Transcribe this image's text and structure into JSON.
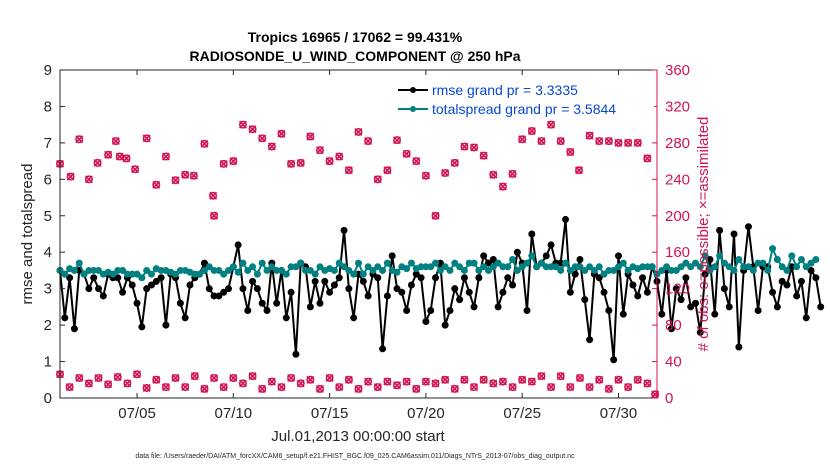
{
  "chart_data": {
    "type": "line",
    "title_line1": "Tropics 16965 / 17062 = 99.431%",
    "title_line2": "RADIOSONDE_U_WIND_COMPONENT @ 250 hPa",
    "xlabel": "Jul.01,2013 00:00:00 start",
    "ylabel_left": "rmse and totalspread",
    "ylabel_right": "# of obs: o=possible; ×=assimilated",
    "ylim_left": [
      0,
      9
    ],
    "ylim_right": [
      0,
      360
    ],
    "yticks_left": [
      "0",
      "1",
      "2",
      "3",
      "4",
      "5",
      "6",
      "7",
      "8",
      "9"
    ],
    "yticks_right": [
      "0",
      "40",
      "80",
      "120",
      "160",
      "200",
      "240",
      "280",
      "320",
      "360"
    ],
    "xlim_days": [
      1,
      32
    ],
    "xticks": [
      {
        "day": 5,
        "label": "07/05"
      },
      {
        "day": 10,
        "label": "07/10"
      },
      {
        "day": 15,
        "label": "07/15"
      },
      {
        "day": 20,
        "label": "07/20"
      },
      {
        "day": 25,
        "label": "07/25"
      },
      {
        "day": 30,
        "label": "07/30"
      }
    ],
    "footnote": "data file: /Users/raeder/DAI/ATM_forcXX/CAM6_setup/f.e21.FHIST_BGC.f09_025.CAM6assim.011/Diags_NTrS_2013-07/obs_diag_output.nc",
    "legend_position": "top-right",
    "series": [
      {
        "name": "rmse grand pr = 3.3335",
        "color": "#000000",
        "axis": "left",
        "t0": 1.0,
        "dt": 0.25,
        "values": [
          3.5,
          2.2,
          3.3,
          1.9,
          3.5,
          3.4,
          3.0,
          3.3,
          3.0,
          2.8,
          3.4,
          3.3,
          3.3,
          2.9,
          3.3,
          3.1,
          2.6,
          1.95,
          3.0,
          3.1,
          3.2,
          3.3,
          2.0,
          3.4,
          3.3,
          2.6,
          2.2,
          3.1,
          3.3,
          3.4,
          3.7,
          3.0,
          2.8,
          2.8,
          2.9,
          3.0,
          3.6,
          4.2,
          3.0,
          2.4,
          3.2,
          3.0,
          2.6,
          2.4,
          3.7,
          2.6,
          3.5,
          2.2,
          2.9,
          1.2,
          3.7,
          3.6,
          2.5,
          3.2,
          2.6,
          3.2,
          2.9,
          3.1,
          3.3,
          4.6,
          3.0,
          2.2,
          3.4,
          3.2,
          2.8,
          3.4,
          3.3,
          1.35,
          2.8,
          3.9,
          3.0,
          2.9,
          2.4,
          3.1,
          3.4,
          3.3,
          2.1,
          2.4,
          3.3,
          3.7,
          2.0,
          2.4,
          3.0,
          2.7,
          3.3,
          2.9,
          2.5,
          3.3,
          3.9,
          3.7,
          3.8,
          2.5,
          2.9,
          3.3,
          3.1,
          4.0,
          3.7,
          2.4,
          4.5,
          3.6,
          3.7,
          3.9,
          4.2,
          3.7,
          3.7,
          4.9,
          2.9,
          3.4,
          3.8,
          2.7,
          1.6,
          3.4,
          3.3,
          2.9,
          2.4,
          1.05,
          3.9,
          2.3,
          3.4,
          3.1,
          2.8,
          3.3,
          2.9,
          3.6,
          3.2,
          2.3,
          3.5,
          1.9,
          3.0,
          2.7,
          3.3,
          2.5,
          2.6,
          1.8,
          3.4,
          3.8,
          2.3,
          4.6,
          3.0,
          2.5,
          4.5,
          1.4,
          3.5,
          4.7,
          3.6,
          2.4,
          3.6,
          3.6,
          2.9,
          2.5,
          3.2,
          3.1,
          3.6,
          2.8,
          3.2,
          2.2,
          3.5,
          3.3,
          2.5
        ]
      },
      {
        "name": "totalspread grand pr = 3.5844",
        "color": "#008080",
        "axis": "left",
        "t0": 1.0,
        "dt": 0.25,
        "values": [
          3.5,
          3.4,
          3.55,
          3.5,
          3.7,
          3.4,
          3.5,
          3.5,
          3.5,
          3.4,
          3.45,
          3.4,
          3.5,
          3.5,
          3.4,
          3.4,
          3.4,
          3.3,
          3.5,
          3.4,
          3.55,
          3.5,
          3.5,
          3.45,
          3.4,
          3.5,
          3.5,
          3.45,
          3.4,
          3.4,
          3.5,
          3.6,
          3.5,
          3.5,
          3.4,
          3.5,
          3.6,
          3.45,
          3.7,
          3.5,
          3.6,
          3.4,
          3.7,
          3.5,
          3.6,
          3.5,
          3.5,
          3.4,
          3.6,
          3.6,
          3.7,
          3.5,
          3.5,
          3.4,
          3.6,
          3.5,
          3.55,
          3.5,
          3.7,
          3.6,
          3.5,
          3.4,
          3.7,
          3.4,
          3.6,
          3.5,
          3.6,
          3.5,
          3.7,
          3.5,
          3.45,
          3.6,
          3.55,
          3.7,
          3.55,
          3.6,
          3.6,
          3.6,
          3.7,
          3.5,
          3.6,
          3.5,
          3.7,
          3.6,
          3.5,
          3.7,
          3.7,
          3.5,
          3.6,
          3.5,
          3.6,
          3.7,
          3.6,
          3.6,
          3.8,
          3.5,
          3.6,
          3.7,
          3.9,
          3.6,
          3.7,
          3.6,
          3.6,
          3.6,
          3.5,
          3.7,
          3.5,
          3.6,
          3.6,
          3.5,
          3.6,
          3.5,
          3.6,
          3.4,
          3.5,
          3.5,
          3.6,
          3.7,
          3.5,
          3.6,
          3.55,
          3.6,
          3.6,
          3.6,
          3.4,
          3.5,
          3.6,
          3.5,
          3.5,
          3.6,
          3.7,
          3.6,
          3.7,
          3.6,
          3.9,
          3.5,
          3.6,
          3.9,
          3.7,
          3.6,
          3.5,
          3.8,
          3.6,
          3.6,
          3.5,
          3.7,
          3.7,
          3.5,
          4.1,
          3.8,
          3.6,
          3.5,
          3.9,
          3.6,
          3.8,
          3.6,
          3.7,
          3.8
        ]
      }
    ],
    "obs_possible": {
      "axis": "right",
      "color": "#d11550",
      "points": [
        [
          1.0,
          257
        ],
        [
          1.55,
          243
        ],
        [
          2.0,
          284
        ],
        [
          2.5,
          240
        ],
        [
          2.95,
          258
        ],
        [
          3.5,
          267
        ],
        [
          3.9,
          282
        ],
        [
          4.1,
          265
        ],
        [
          4.45,
          263
        ],
        [
          4.9,
          251
        ],
        [
          5.5,
          285
        ],
        [
          6.0,
          234
        ],
        [
          6.5,
          265
        ],
        [
          7.0,
          239
        ],
        [
          7.5,
          245
        ],
        [
          7.95,
          244
        ],
        [
          8.5,
          279
        ],
        [
          8.95,
          222
        ],
        [
          9.0,
          200
        ],
        [
          9.5,
          257
        ],
        [
          10.0,
          260
        ],
        [
          10.5,
          300
        ],
        [
          11.0,
          295
        ],
        [
          11.5,
          285
        ],
        [
          12.0,
          276
        ],
        [
          12.5,
          290
        ],
        [
          13.0,
          257
        ],
        [
          13.5,
          258
        ],
        [
          14.0,
          287
        ],
        [
          14.5,
          272
        ],
        [
          15.0,
          260
        ],
        [
          15.5,
          265
        ],
        [
          16.0,
          250
        ],
        [
          16.5,
          292
        ],
        [
          17.0,
          282
        ],
        [
          17.5,
          240
        ],
        [
          18.0,
          250
        ],
        [
          18.5,
          283
        ],
        [
          19.0,
          268
        ],
        [
          19.5,
          260
        ],
        [
          20.0,
          244
        ],
        [
          20.5,
          200
        ],
        [
          21.0,
          247
        ],
        [
          21.5,
          258
        ],
        [
          22.0,
          276
        ],
        [
          22.5,
          275
        ],
        [
          23.0,
          266
        ],
        [
          23.5,
          245
        ],
        [
          24.0,
          232
        ],
        [
          24.5,
          246
        ],
        [
          25.0,
          284
        ],
        [
          25.5,
          293
        ],
        [
          26.0,
          282
        ],
        [
          26.5,
          300
        ],
        [
          27.0,
          282
        ],
        [
          27.5,
          270
        ],
        [
          27.95,
          250
        ],
        [
          28.5,
          288
        ],
        [
          29.0,
          282
        ],
        [
          29.5,
          282
        ],
        [
          30.0,
          280
        ],
        [
          30.5,
          280
        ],
        [
          31.0,
          280
        ],
        [
          31.5,
          263
        ]
      ]
    },
    "obs_assimilated": {
      "axis": "right",
      "color": "#d11550",
      "points": [
        [
          1.0,
          26
        ],
        [
          1.5,
          12
        ],
        [
          2.0,
          22
        ],
        [
          2.5,
          16
        ],
        [
          3.0,
          22
        ],
        [
          3.5,
          15
        ],
        [
          4.0,
          23
        ],
        [
          4.5,
          16
        ],
        [
          5.0,
          26
        ],
        [
          5.5,
          11
        ],
        [
          6.0,
          20
        ],
        [
          6.5,
          12
        ],
        [
          7.0,
          22
        ],
        [
          7.5,
          12
        ],
        [
          8.0,
          24
        ],
        [
          8.5,
          10
        ],
        [
          9.0,
          22
        ],
        [
          9.5,
          12
        ],
        [
          10.0,
          22
        ],
        [
          10.5,
          16
        ],
        [
          11.0,
          24
        ],
        [
          11.5,
          10
        ],
        [
          12.0,
          18
        ],
        [
          12.5,
          12
        ],
        [
          13.0,
          22
        ],
        [
          13.5,
          16
        ],
        [
          14.0,
          20
        ],
        [
          14.5,
          10
        ],
        [
          15.0,
          22
        ],
        [
          15.5,
          12
        ],
        [
          16.0,
          20
        ],
        [
          16.5,
          10
        ],
        [
          17.0,
          18
        ],
        [
          17.5,
          12
        ],
        [
          18.0,
          18
        ],
        [
          18.5,
          14
        ],
        [
          19.0,
          18
        ],
        [
          19.5,
          10
        ],
        [
          20.0,
          18
        ],
        [
          20.5,
          16
        ],
        [
          21.0,
          20
        ],
        [
          21.5,
          10
        ],
        [
          22.0,
          20
        ],
        [
          22.5,
          12
        ],
        [
          23.0,
          20
        ],
        [
          23.5,
          16
        ],
        [
          24.0,
          18
        ],
        [
          24.5,
          12
        ],
        [
          25.0,
          20
        ],
        [
          25.5,
          18
        ],
        [
          26.0,
          24
        ],
        [
          26.5,
          12
        ],
        [
          27.0,
          24
        ],
        [
          27.5,
          12
        ],
        [
          28.0,
          22
        ],
        [
          28.5,
          12
        ],
        [
          29.0,
          20
        ],
        [
          29.5,
          10
        ],
        [
          30.0,
          20
        ],
        [
          30.5,
          12
        ],
        [
          31.0,
          20
        ],
        [
          31.5,
          16
        ],
        [
          31.9,
          4
        ]
      ]
    }
  }
}
